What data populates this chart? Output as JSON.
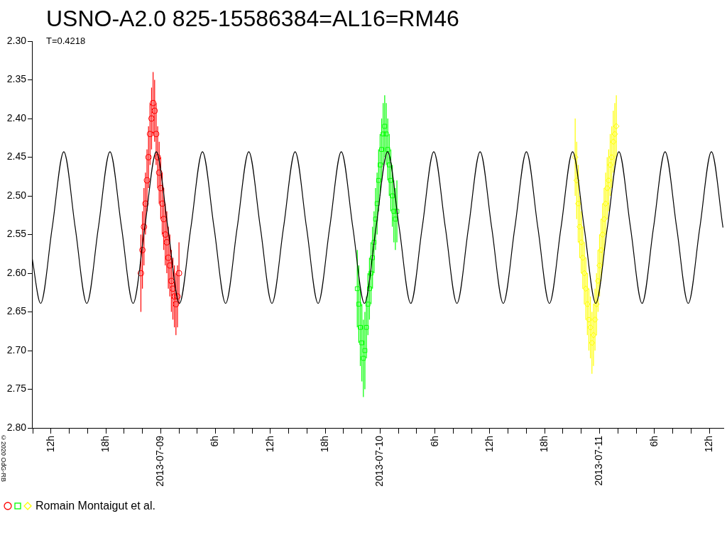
{
  "chart_data": {
    "type": "scatter",
    "title": "USNO-A2.0 825-15586384=AL16=RM46",
    "subtitle": "T=0.4218",
    "annotations": [
      "©2020 OdG-RB"
    ],
    "xlim": [
      "2013-07-08T09:55",
      "2013-07-11T13:33"
    ],
    "xticks": [
      {
        "value": "2013-07-08T10:00",
        "label": null
      },
      {
        "value": "2013-07-08T12:00",
        "label": "12h"
      },
      {
        "value": "2013-07-08T14:00",
        "label": null
      },
      {
        "value": "2013-07-08T16:00",
        "label": null
      },
      {
        "value": "2013-07-08T18:00",
        "label": "18h"
      },
      {
        "value": "2013-07-08T20:00",
        "label": null
      },
      {
        "value": "2013-07-08T22:00",
        "label": null
      },
      {
        "value": "2013-07-09T00:00",
        "label": "2013-07-09"
      },
      {
        "value": "2013-07-09T02:00",
        "label": null
      },
      {
        "value": "2013-07-09T04:00",
        "label": null
      },
      {
        "value": "2013-07-09T06:00",
        "label": "6h"
      },
      {
        "value": "2013-07-09T08:00",
        "label": null
      },
      {
        "value": "2013-07-09T10:00",
        "label": null
      },
      {
        "value": "2013-07-09T12:00",
        "label": "12h"
      },
      {
        "value": "2013-07-09T14:00",
        "label": null
      },
      {
        "value": "2013-07-09T16:00",
        "label": null
      },
      {
        "value": "2013-07-09T18:00",
        "label": "18h"
      },
      {
        "value": "2013-07-09T20:00",
        "label": null
      },
      {
        "value": "2013-07-09T22:00",
        "label": null
      },
      {
        "value": "2013-07-10T00:00",
        "label": "2013-07-10"
      },
      {
        "value": "2013-07-10T02:00",
        "label": null
      },
      {
        "value": "2013-07-10T04:00",
        "label": null
      },
      {
        "value": "2013-07-10T06:00",
        "label": "6h"
      },
      {
        "value": "2013-07-10T08:00",
        "label": null
      },
      {
        "value": "2013-07-10T10:00",
        "label": null
      },
      {
        "value": "2013-07-10T12:00",
        "label": "12h"
      },
      {
        "value": "2013-07-10T14:00",
        "label": null
      },
      {
        "value": "2013-07-10T16:00",
        "label": null
      },
      {
        "value": "2013-07-10T18:00",
        "label": "18h"
      },
      {
        "value": "2013-07-10T20:00",
        "label": null
      },
      {
        "value": "2013-07-10T22:00",
        "label": null
      },
      {
        "value": "2013-07-11T00:00",
        "label": "2013-07-11"
      },
      {
        "value": "2013-07-11T02:00",
        "label": null
      },
      {
        "value": "2013-07-11T04:00",
        "label": null
      },
      {
        "value": "2013-07-11T06:00",
        "label": "6h"
      },
      {
        "value": "2013-07-11T08:00",
        "label": null
      },
      {
        "value": "2013-07-11T10:00",
        "label": null
      },
      {
        "value": "2013-07-11T12:00",
        "label": "12h"
      }
    ],
    "ylim": [
      2.8,
      2.3
    ],
    "yticks": [
      {
        "value": 2.3,
        "label": "2.30"
      },
      {
        "value": 2.35,
        "label": "2.35"
      },
      {
        "value": 2.4,
        "label": "2.40"
      },
      {
        "value": 2.45,
        "label": "2.45"
      },
      {
        "value": 2.5,
        "label": "2.50"
      },
      {
        "value": 2.55,
        "label": "2.55"
      },
      {
        "value": 2.6,
        "label": "2.60"
      },
      {
        "value": 2.65,
        "label": "2.65"
      },
      {
        "value": 2.7,
        "label": "2.70"
      },
      {
        "value": 2.75,
        "label": "2.75"
      },
      {
        "value": 2.8,
        "label": "2.80"
      }
    ],
    "legend_title": "Romain Montaigut et al.",
    "series": [
      {
        "type": "line",
        "color": "#000000",
        "marker": "none",
        "x": [
          "2013-07-08T09:55",
          "2013-07-08T10:52",
          "2013-07-08T12:08",
          "2013-07-08T13:24",
          "2013-07-08T14:39",
          "2013-07-08T15:55",
          "2013-07-08T17:11",
          "2013-07-08T18:27",
          "2013-07-08T19:43",
          "2013-07-08T20:59",
          "2013-07-08T22:15",
          "2013-07-08T23:31",
          "2013-07-09T00:47",
          "2013-07-09T02:03",
          "2013-07-09T03:18",
          "2013-07-09T04:34",
          "2013-07-09T05:50",
          "2013-07-09T07:06",
          "2013-07-09T08:22",
          "2013-07-09T09:38",
          "2013-07-09T10:54",
          "2013-07-09T12:10",
          "2013-07-09T13:26",
          "2013-07-09T14:42",
          "2013-07-09T15:57",
          "2013-07-09T17:13",
          "2013-07-09T18:29",
          "2013-07-09T19:45",
          "2013-07-09T21:01",
          "2013-07-09T22:17",
          "2013-07-09T23:33",
          "2013-07-10T00:49",
          "2013-07-10T02:05",
          "2013-07-10T03:21",
          "2013-07-10T04:36",
          "2013-07-10T05:52",
          "2013-07-10T07:08",
          "2013-07-10T08:24",
          "2013-07-10T09:40",
          "2013-07-10T10:56",
          "2013-07-10T12:12",
          "2013-07-10T13:28",
          "2013-07-10T14:44",
          "2013-07-10T16:00",
          "2013-07-10T17:15",
          "2013-07-10T18:31",
          "2013-07-10T19:47",
          "2013-07-10T21:03",
          "2013-07-10T22:19",
          "2013-07-10T23:35",
          "2013-07-11T00:51",
          "2013-07-11T02:07",
          "2013-07-11T03:23",
          "2013-07-11T04:39",
          "2013-07-11T05:54",
          "2013-07-11T07:10",
          "2013-07-11T08:26",
          "2013-07-11T09:42",
          "2013-07-11T10:58",
          "2013-07-11T12:14",
          "2013-07-11T13:30"
        ],
        "values": [
          2.579,
          2.639,
          2.541,
          2.443,
          2.541,
          2.639,
          2.541,
          2.443,
          2.541,
          2.639,
          2.541,
          2.443,
          2.541,
          2.639,
          2.541,
          2.443,
          2.541,
          2.639,
          2.541,
          2.443,
          2.541,
          2.639,
          2.541,
          2.443,
          2.541,
          2.639,
          2.541,
          2.443,
          2.541,
          2.639,
          2.541,
          2.443,
          2.541,
          2.639,
          2.541,
          2.443,
          2.541,
          2.639,
          2.541,
          2.443,
          2.541,
          2.639,
          2.541,
          2.443,
          2.541,
          2.639,
          2.541,
          2.443,
          2.541,
          2.639,
          2.541,
          2.443,
          2.541,
          2.639,
          2.541,
          2.443,
          2.541,
          2.639,
          2.541,
          2.443,
          2.541
        ]
      },
      {
        "color": "#ff0000",
        "marker": "circle",
        "x": [
          "2013-07-08T21:50",
          "2013-07-08T22:00",
          "2013-07-08T22:10",
          "2013-07-08T22:20",
          "2013-07-08T22:30",
          "2013-07-08T22:40",
          "2013-07-08T22:50",
          "2013-07-08T23:00",
          "2013-07-08T23:10",
          "2013-07-08T23:20",
          "2013-07-08T23:30",
          "2013-07-08T23:40",
          "2013-07-08T23:50",
          "2013-07-09T00:00",
          "2013-07-09T00:10",
          "2013-07-09T00:20",
          "2013-07-09T00:30",
          "2013-07-09T00:40",
          "2013-07-09T00:50",
          "2013-07-09T01:00",
          "2013-07-09T01:10",
          "2013-07-09T01:20",
          "2013-07-09T01:30",
          "2013-07-09T01:40",
          "2013-07-09T01:50",
          "2013-07-09T02:00"
        ],
        "values": [
          2.6,
          2.57,
          2.54,
          2.51,
          2.48,
          2.45,
          2.42,
          2.4,
          2.38,
          2.39,
          2.42,
          2.45,
          2.47,
          2.49,
          2.51,
          2.53,
          2.55,
          2.56,
          2.58,
          2.59,
          2.61,
          2.62,
          2.63,
          2.64,
          2.63,
          2.6
        ],
        "errors": [
          0.05,
          0.05,
          0.05,
          0.04,
          0.04,
          0.04,
          0.04,
          0.04,
          0.04,
          0.04,
          0.04,
          0.04,
          0.04,
          0.04,
          0.04,
          0.04,
          0.04,
          0.04,
          0.04,
          0.04,
          0.04,
          0.04,
          0.04,
          0.04,
          0.04,
          0.04
        ]
      },
      {
        "color": "#00ff00",
        "marker": "square",
        "x": [
          "2013-07-09T21:30",
          "2013-07-09T21:40",
          "2013-07-09T21:50",
          "2013-07-09T22:00",
          "2013-07-09T22:10",
          "2013-07-09T22:20",
          "2013-07-09T22:30",
          "2013-07-09T22:40",
          "2013-07-09T22:50",
          "2013-07-09T23:00",
          "2013-07-09T23:10",
          "2013-07-09T23:20",
          "2013-07-09T23:30",
          "2013-07-09T23:40",
          "2013-07-09T23:50",
          "2013-07-10T00:00",
          "2013-07-10T00:10",
          "2013-07-10T00:20",
          "2013-07-10T00:30",
          "2013-07-10T00:40",
          "2013-07-10T00:50",
          "2013-07-10T01:00",
          "2013-07-10T01:10",
          "2013-07-10T01:20",
          "2013-07-10T01:30",
          "2013-07-10T01:40",
          "2013-07-10T01:50"
        ],
        "values": [
          2.62,
          2.64,
          2.67,
          2.69,
          2.71,
          2.7,
          2.67,
          2.64,
          2.62,
          2.6,
          2.58,
          2.56,
          2.53,
          2.51,
          2.48,
          2.46,
          2.44,
          2.42,
          2.41,
          2.42,
          2.44,
          2.46,
          2.48,
          2.5,
          2.52,
          2.53,
          2.52
        ],
        "errors": [
          0.05,
          0.05,
          0.05,
          0.05,
          0.05,
          0.05,
          0.04,
          0.04,
          0.04,
          0.04,
          0.04,
          0.04,
          0.04,
          0.04,
          0.04,
          0.04,
          0.04,
          0.04,
          0.04,
          0.04,
          0.04,
          0.04,
          0.04,
          0.04,
          0.04,
          0.04,
          0.04
        ]
      },
      {
        "color": "#ffff00",
        "marker": "diamond",
        "x": [
          "2013-07-10T21:20",
          "2013-07-10T21:30",
          "2013-07-10T21:40",
          "2013-07-10T21:50",
          "2013-07-10T22:00",
          "2013-07-10T22:10",
          "2013-07-10T22:20",
          "2013-07-10T22:30",
          "2013-07-10T22:40",
          "2013-07-10T22:50",
          "2013-07-10T23:00",
          "2013-07-10T23:10",
          "2013-07-10T23:20",
          "2013-07-10T23:30",
          "2013-07-10T23:40",
          "2013-07-10T23:50",
          "2013-07-11T00:00",
          "2013-07-11T00:10",
          "2013-07-11T00:20",
          "2013-07-11T00:30",
          "2013-07-11T00:40",
          "2013-07-11T00:50",
          "2013-07-11T01:00",
          "2013-07-11T01:10",
          "2013-07-11T01:20",
          "2013-07-11T01:30",
          "2013-07-11T01:40",
          "2013-07-11T01:50"
        ],
        "values": [
          2.45,
          2.48,
          2.51,
          2.54,
          2.56,
          2.58,
          2.6,
          2.62,
          2.64,
          2.66,
          2.67,
          2.69,
          2.68,
          2.66,
          2.64,
          2.61,
          2.59,
          2.57,
          2.55,
          2.53,
          2.51,
          2.49,
          2.48,
          2.46,
          2.45,
          2.43,
          2.42,
          2.41
        ],
        "errors": [
          0.05,
          0.05,
          0.05,
          0.04,
          0.04,
          0.04,
          0.04,
          0.04,
          0.04,
          0.04,
          0.04,
          0.04,
          0.04,
          0.04,
          0.04,
          0.04,
          0.04,
          0.04,
          0.04,
          0.04,
          0.04,
          0.04,
          0.04,
          0.04,
          0.04,
          0.04,
          0.04,
          0.04
        ]
      }
    ]
  }
}
